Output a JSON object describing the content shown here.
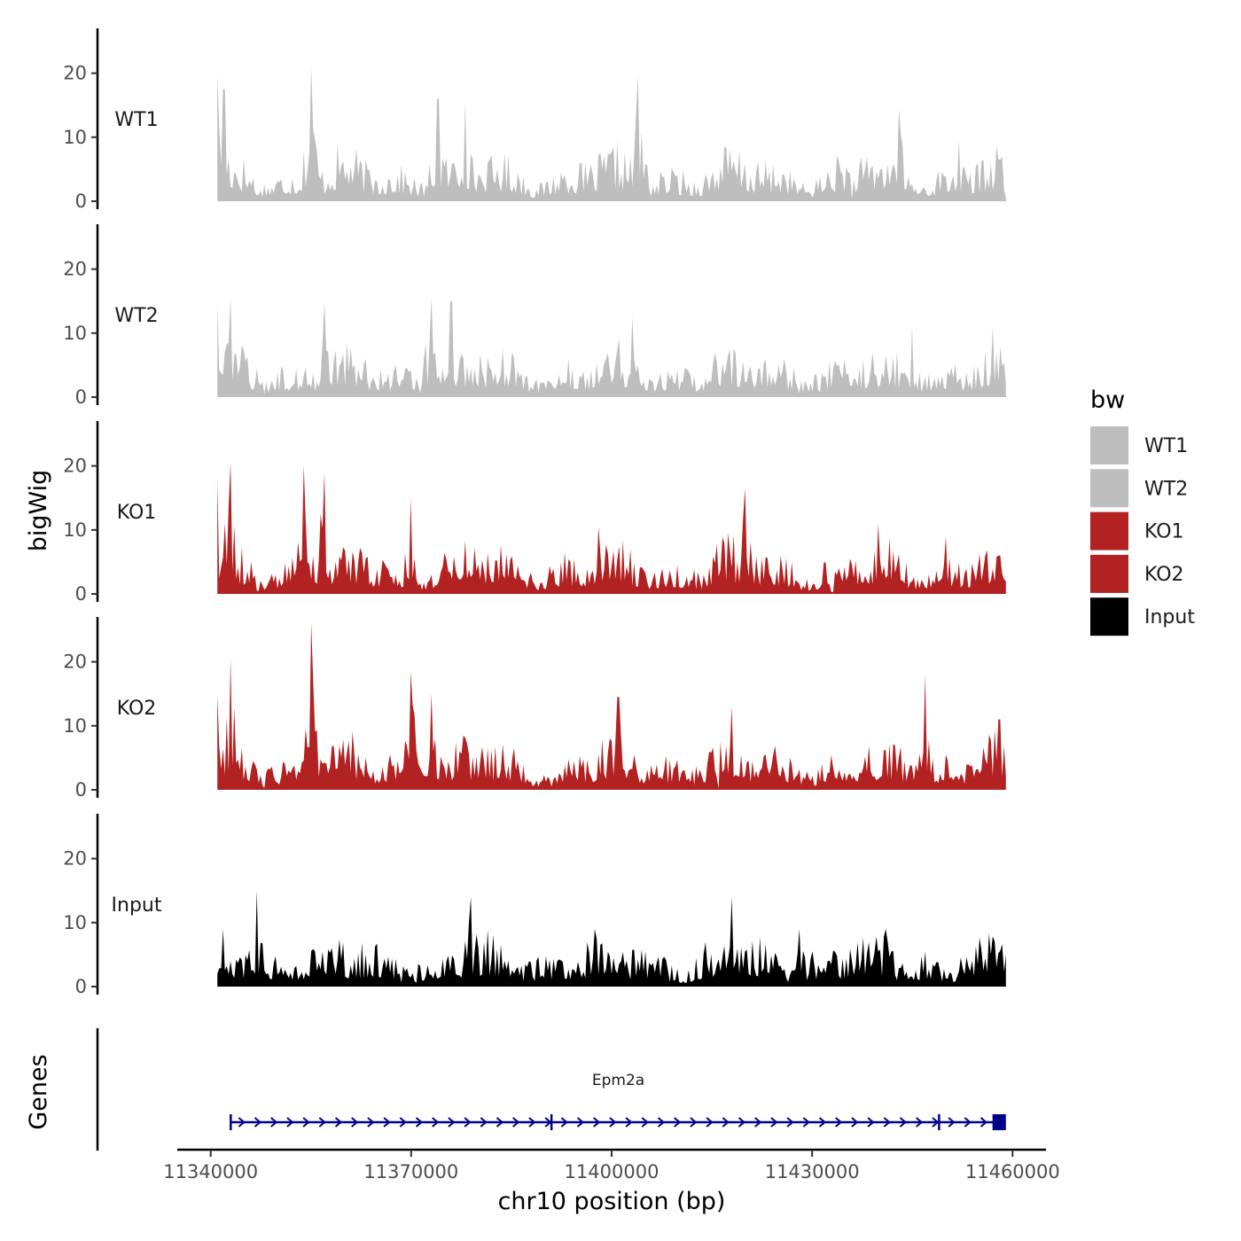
{
  "chart_data": {
    "type": "area",
    "ylabel": "bigWig",
    "xlabel": "chr10 position (bp)",
    "xlim": [
      11335000,
      11465000
    ],
    "data_range": [
      11341000,
      11459000
    ],
    "x_ticks": [
      11340000,
      11370000,
      11400000,
      11430000,
      11460000
    ],
    "ylim": [
      0,
      27
    ],
    "y_ticks": [
      0,
      10,
      20
    ],
    "legend": {
      "title": "bw",
      "position": "right",
      "entries": [
        {
          "label": "WT1",
          "color": "#bebebe"
        },
        {
          "label": "WT2",
          "color": "#bebebe"
        },
        {
          "label": "KO1",
          "color": "#b22222"
        },
        {
          "label": "KO2",
          "color": "#b22222"
        },
        {
          "label": "Input",
          "color": "#000000"
        }
      ]
    },
    "series": [
      {
        "name": "WT1",
        "color": "#bebebe",
        "peaks": [
          [
            11341000,
            20
          ],
          [
            11342000,
            17.5
          ],
          [
            11355000,
            21
          ],
          [
            11374000,
            16
          ],
          [
            11378000,
            15.5
          ],
          [
            11404000,
            19.5
          ],
          [
            11443000,
            14.5
          ],
          [
            11452000,
            9.5
          ],
          [
            11458000,
            6.5
          ]
        ],
        "dips": [
          [
            11347000,
            1
          ],
          [
            11436000,
            0.3
          ],
          [
            11459000,
            0.5
          ]
        ]
      },
      {
        "name": "WT2",
        "color": "#bebebe",
        "peaks": [
          [
            11341000,
            14.5
          ],
          [
            11343000,
            15.5
          ],
          [
            11357000,
            15
          ],
          [
            11373000,
            15.5
          ],
          [
            11376000,
            15
          ],
          [
            11403000,
            12.5
          ],
          [
            11445000,
            11
          ],
          [
            11457000,
            11
          ],
          [
            11459000,
            7
          ]
        ],
        "dips": [
          [
            11348000,
            0.5
          ],
          [
            11352000,
            2
          ],
          [
            11459000,
            2
          ]
        ]
      },
      {
        "name": "KO1",
        "color": "#b22222",
        "peaks": [
          [
            11341000,
            18
          ],
          [
            11343000,
            20.5
          ],
          [
            11354000,
            20
          ],
          [
            11357000,
            19
          ],
          [
            11370000,
            15
          ],
          [
            11398000,
            10.5
          ],
          [
            11420000,
            16.5
          ],
          [
            11440000,
            11
          ],
          [
            11450000,
            9
          ],
          [
            11458000,
            6
          ]
        ],
        "dips": [
          [
            11347000,
            0.5
          ],
          [
            11390000,
            0.8
          ],
          [
            11433000,
            0.3
          ],
          [
            11459000,
            2
          ]
        ]
      },
      {
        "name": "KO2",
        "color": "#b22222",
        "peaks": [
          [
            11341000,
            15
          ],
          [
            11343000,
            20.5
          ],
          [
            11355000,
            26
          ],
          [
            11370000,
            18.5
          ],
          [
            11373000,
            15
          ],
          [
            11401000,
            14.5
          ],
          [
            11418000,
            13
          ],
          [
            11447000,
            18
          ],
          [
            11458000,
            11
          ],
          [
            11459000,
            7.5
          ]
        ],
        "dips": [
          [
            11348000,
            0.3
          ],
          [
            11391000,
            0.5
          ],
          [
            11416000,
            0.2
          ],
          [
            11459000,
            2
          ]
        ]
      },
      {
        "name": "Input",
        "color": "#000000",
        "peaks": [
          [
            11347000,
            15
          ],
          [
            11379000,
            14
          ],
          [
            11418000,
            14
          ],
          [
            11428000,
            9
          ],
          [
            11441000,
            9
          ],
          [
            11459000,
            8
          ]
        ],
        "dips": [
          [
            11341000,
            2
          ],
          [
            11459000,
            5
          ]
        ]
      }
    ],
    "genes_track": {
      "label": "Genes",
      "gene": {
        "name": "Epm2a",
        "start": 11343000,
        "end": 11459000,
        "strand": "+",
        "color": "#00008b",
        "exon_boundaries": [
          11343000,
          11391000,
          11449000
        ],
        "end_exon": [
          11457000,
          11459000
        ]
      }
    }
  }
}
